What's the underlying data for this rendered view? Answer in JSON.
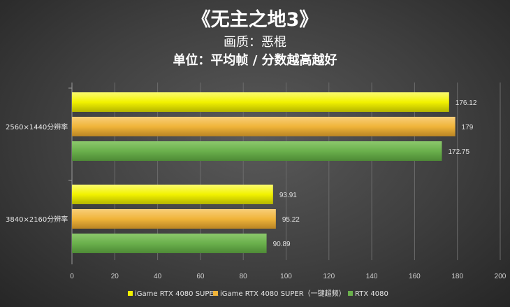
{
  "header": {
    "title": "《无主之地3》",
    "quality": "画质：恶棍",
    "unit": "单位：平均帧 / 分数越高越好"
  },
  "chart_data": {
    "type": "bar",
    "orientation": "horizontal",
    "categories": [
      "2560×1440分辨率",
      "3840×2160分辨率"
    ],
    "series": [
      {
        "name": "iGame RTX 4080 SUPER",
        "color": "#f2f200",
        "values": [
          176.12,
          93.91
        ]
      },
      {
        "name": "iGame RTX 4080 SUPER（一键超频）",
        "color": "#f0b43a",
        "values": [
          179,
          95.22
        ]
      },
      {
        "name": "RTX 4080",
        "color": "#6ab04c",
        "values": [
          172.75,
          90.89
        ]
      }
    ],
    "xlim": [
      0,
      200
    ],
    "xticks": [
      0,
      20,
      40,
      60,
      80,
      100,
      120,
      140,
      160,
      180,
      200
    ],
    "grid": true,
    "legend": "bottom"
  }
}
